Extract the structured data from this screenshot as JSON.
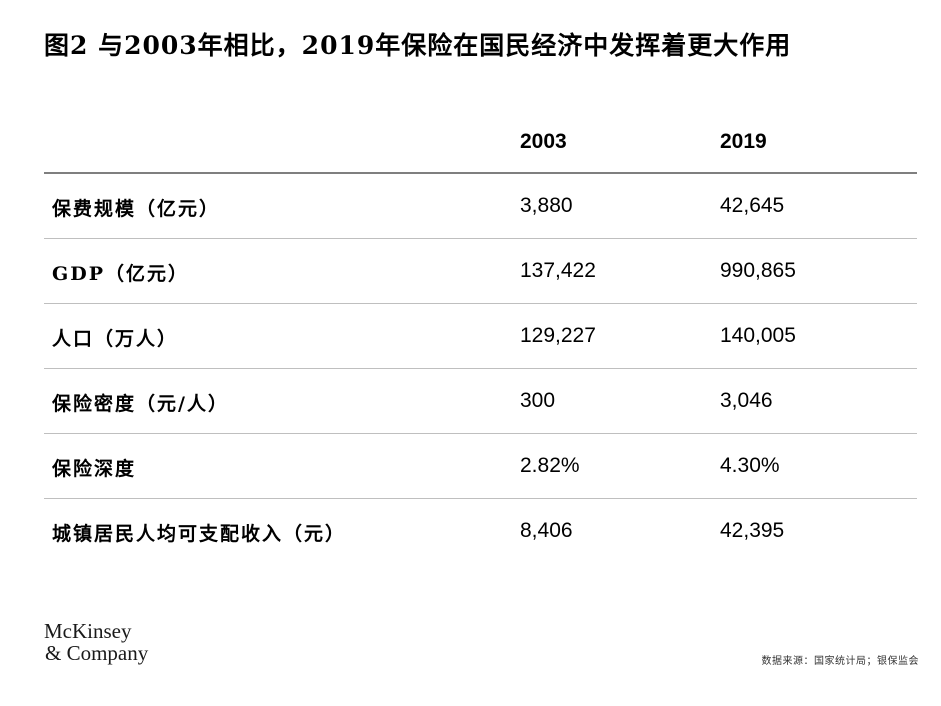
{
  "title": "图2 与2003年相比，2019年保险在国民经济中发挥着更大作用",
  "table": {
    "headers": [
      "",
      "2003",
      "2019"
    ],
    "rows": [
      {
        "label": "保费规模（亿元）",
        "v2003": "3,880",
        "v2019": "42,645"
      },
      {
        "label": "GDP（亿元）",
        "v2003": "137,422",
        "v2019": "990,865"
      },
      {
        "label": "人口（万人）",
        "v2003": "129,227",
        "v2019": "140,005"
      },
      {
        "label": "保险密度（元/人）",
        "v2003": "300",
        "v2019": "3,046"
      },
      {
        "label": "保险深度",
        "v2003": "2.82%",
        "v2019": "4.30%"
      },
      {
        "label": "城镇居民人均可支配收入（元）",
        "v2003": "8,406",
        "v2019": "42,395"
      }
    ]
  },
  "logo": {
    "line1": "McKinsey",
    "line2": "& Company"
  },
  "source": "数据来源：国家统计局；银保监会"
}
